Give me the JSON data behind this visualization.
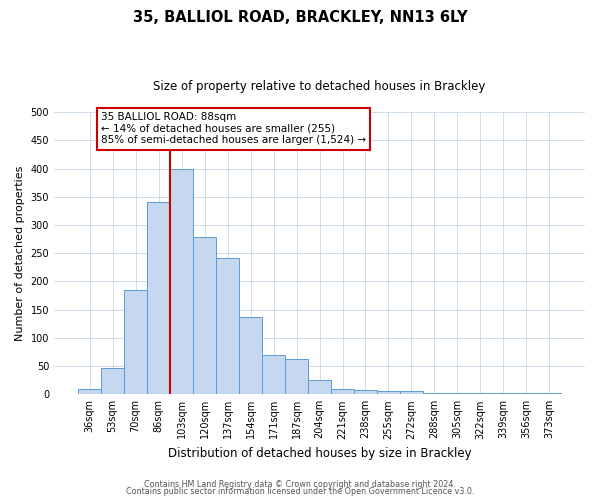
{
  "title": "35, BALLIOL ROAD, BRACKLEY, NN13 6LY",
  "subtitle": "Size of property relative to detached houses in Brackley",
  "xlabel": "Distribution of detached houses by size in Brackley",
  "ylabel": "Number of detached properties",
  "bar_labels": [
    "36sqm",
    "53sqm",
    "70sqm",
    "86sqm",
    "103sqm",
    "120sqm",
    "137sqm",
    "154sqm",
    "171sqm",
    "187sqm",
    "204sqm",
    "221sqm",
    "238sqm",
    "255sqm",
    "272sqm",
    "288sqm",
    "305sqm",
    "322sqm",
    "339sqm",
    "356sqm",
    "373sqm"
  ],
  "bar_values": [
    10,
    46,
    185,
    340,
    400,
    278,
    242,
    137,
    70,
    62,
    26,
    10,
    7,
    5,
    5,
    3,
    3,
    3,
    2,
    2,
    3
  ],
  "bar_color": "#c5d8f0",
  "bar_edge_color": "#5b9bd5",
  "vline_index": 3,
  "vline_color": "#cc0000",
  "annotation_text": "35 BALLIOL ROAD: 88sqm\n← 14% of detached houses are smaller (255)\n85% of semi-detached houses are larger (1,524) →",
  "annotation_box_color": "#ffffff",
  "annotation_box_edge": "#cc0000",
  "ylim": [
    0,
    500
  ],
  "yticks": [
    0,
    50,
    100,
    150,
    200,
    250,
    300,
    350,
    400,
    450,
    500
  ],
  "footer_line1": "Contains HM Land Registry data © Crown copyright and database right 2024.",
  "footer_line2": "Contains public sector information licensed under the Open Government Licence v3.0.",
  "background_color": "#ffffff",
  "grid_color": "#c8d8e8",
  "title_fontsize": 10.5,
  "subtitle_fontsize": 8.5,
  "ylabel_fontsize": 8,
  "xlabel_fontsize": 8.5,
  "tick_fontsize": 7,
  "annotation_fontsize": 7.5,
  "footer_fontsize": 5.8
}
